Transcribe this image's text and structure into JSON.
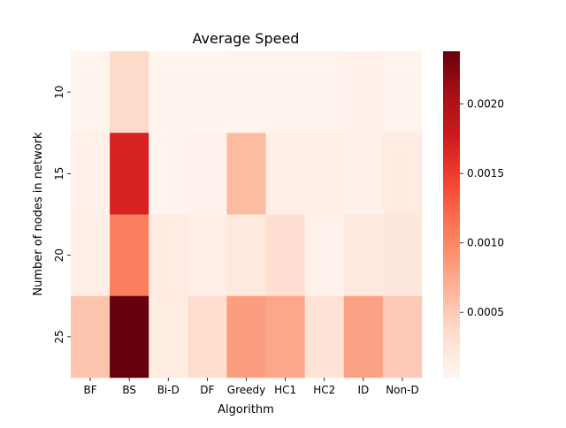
{
  "chart_data": {
    "type": "heatmap",
    "title": "Average Speed",
    "xlabel": "Algorithm",
    "ylabel": "Number of nodes in network",
    "x_categories": [
      "BF",
      "BS",
      "Bi-D",
      "DF",
      "Greedy",
      "HC1",
      "HC2",
      "ID",
      "Non-D"
    ],
    "y_categories": [
      "10",
      "15",
      "20",
      "25"
    ],
    "values": [
      [
        5e-05,
        0.00037,
        5e-05,
        5e-05,
        6e-05,
        6e-05,
        6e-05,
        9e-05,
        6e-05
      ],
      [
        9e-05,
        0.0017,
        6e-05,
        7e-05,
        0.00061,
        0.00012,
        0.00012,
        0.0001,
        0.00017
      ],
      [
        0.00013,
        0.00106,
        0.00017,
        0.00013,
        0.0002,
        0.00033,
        8e-05,
        0.0002,
        0.00022
      ],
      [
        0.00055,
        0.00238,
        0.00016,
        0.00034,
        0.00083,
        0.00076,
        0.00028,
        0.0008,
        0.0005
      ]
    ],
    "colorscale": "Reds",
    "color_range": [
      3e-05,
      0.00238
    ],
    "colorbar_ticks": [
      "0.0005",
      "0.0010",
      "0.0015",
      "0.0020"
    ],
    "colorbar_tick_values": [
      0.0005,
      0.001,
      0.0015,
      0.002
    ],
    "colorbar_position": "right",
    "grid": false
  }
}
